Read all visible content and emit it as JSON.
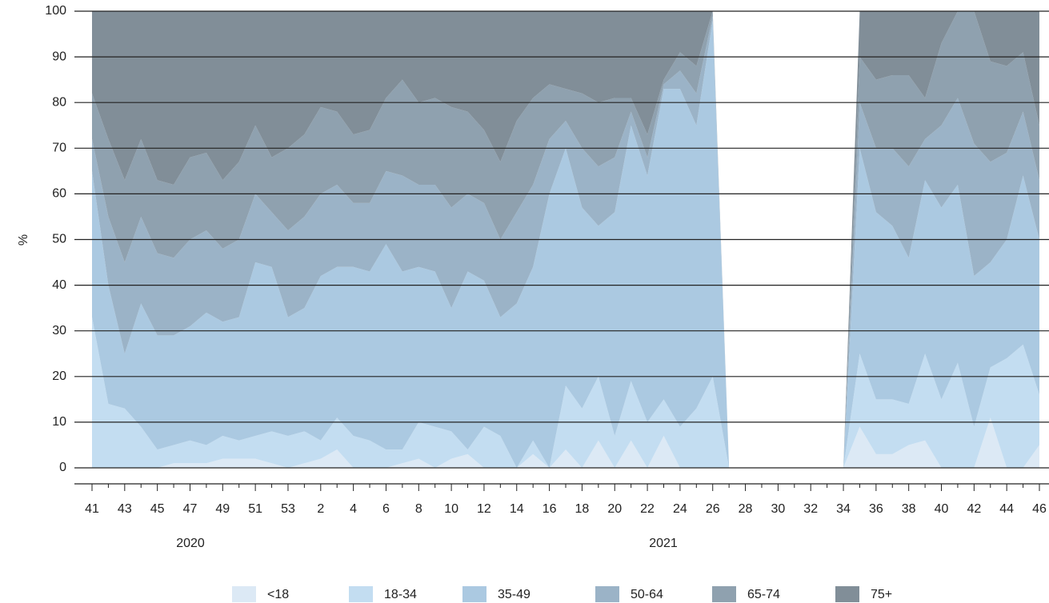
{
  "chart_data": {
    "type": "stacked_area",
    "y_label": "%",
    "categories": [
      "41",
      null,
      "43",
      null,
      "45",
      null,
      "47",
      null,
      "49",
      null,
      "51",
      null,
      "53",
      null,
      "2",
      null,
      "4",
      null,
      "6",
      null,
      "8",
      null,
      "10",
      null,
      "12",
      null,
      "14",
      null,
      "16",
      null,
      "18",
      null,
      "20",
      null,
      "22",
      null,
      "24",
      null,
      "26",
      null,
      "28",
      null,
      "30",
      null,
      "32",
      null,
      "34",
      null,
      "36",
      null,
      "38",
      null,
      "40",
      null,
      "42",
      null,
      "44",
      null,
      "46"
    ],
    "annotations": [
      "2020",
      "2021"
    ],
    "ylim": [
      0,
      100
    ],
    "yticks": [
      0,
      10,
      20,
      30,
      40,
      50,
      60,
      70,
      80,
      90,
      100
    ],
    "grid": true,
    "legend": "bottom",
    "series": [
      {
        "name": "<18",
        "color": "#dce9f5",
        "values": [
          0,
          0,
          0,
          0,
          0,
          1,
          1,
          1,
          2,
          2,
          2,
          1,
          0,
          1,
          2,
          4,
          0,
          0,
          0,
          1,
          2,
          0,
          2,
          3,
          0,
          0,
          0,
          3,
          0,
          4,
          0,
          6,
          0,
          6,
          0,
          7,
          0,
          0,
          0,
          0,
          0,
          0,
          0,
          0,
          0,
          0,
          0,
          9,
          3,
          3,
          5,
          6,
          0,
          0,
          0,
          11,
          0,
          0,
          5
        ]
      },
      {
        "name": "18-34",
        "color": "#c3ddf1",
        "values": [
          33,
          14,
          13,
          9,
          4,
          4,
          5,
          4,
          5,
          4,
          5,
          7,
          7,
          7,
          4,
          7,
          7,
          6,
          4,
          3,
          8,
          9,
          6,
          1,
          9,
          7,
          0,
          3,
          0,
          14,
          13,
          14,
          7,
          13,
          10,
          8,
          9,
          13,
          20,
          0,
          0,
          0,
          0,
          0,
          0,
          0,
          0,
          16,
          12,
          12,
          9,
          19,
          15,
          23,
          9,
          11,
          24,
          27,
          11
        ]
      },
      {
        "name": "35-49",
        "color": "#abc9e1",
        "values": [
          32,
          26,
          12,
          27,
          25,
          24,
          25,
          29,
          25,
          27,
          38,
          36,
          26,
          27,
          36,
          33,
          37,
          37,
          45,
          39,
          34,
          34,
          27,
          39,
          32,
          26,
          36,
          38,
          60,
          52,
          44,
          33,
          49,
          56,
          54,
          68,
          74,
          62,
          78,
          0,
          0,
          0,
          0,
          0,
          0,
          0,
          0,
          45,
          41,
          38,
          32,
          38,
          42,
          39,
          33,
          23,
          26,
          37,
          34
        ]
      },
      {
        "name": "50-64",
        "color": "#9bb3c7",
        "values": [
          7,
          15,
          20,
          19,
          18,
          17,
          19,
          18,
          16,
          17,
          15,
          12,
          19,
          20,
          18,
          18,
          14,
          15,
          16,
          21,
          18,
          19,
          22,
          17,
          17,
          17,
          20,
          18,
          12,
          6,
          13,
          13,
          12,
          3,
          4,
          1,
          4,
          7,
          1,
          0,
          0,
          0,
          0,
          0,
          0,
          0,
          0,
          10,
          14,
          17,
          20,
          9,
          18,
          19,
          29,
          22,
          19,
          14,
          13
        ]
      },
      {
        "name": "65-74",
        "color": "#8fa1af",
        "values": [
          10,
          17,
          18,
          17,
          16,
          16,
          18,
          17,
          15,
          17,
          15,
          12,
          18,
          18,
          19,
          16,
          15,
          16,
          16,
          21,
          18,
          19,
          22,
          18,
          16,
          17,
          20,
          19,
          12,
          7,
          12,
          14,
          13,
          3,
          5,
          1,
          4,
          6,
          1,
          0,
          0,
          0,
          0,
          0,
          0,
          0,
          0,
          10,
          15,
          16,
          20,
          9,
          18,
          19,
          29,
          22,
          19,
          13,
          12
        ]
      },
      {
        "name": "75+",
        "color": "#818e98",
        "values": [
          18,
          28,
          37,
          28,
          37,
          38,
          32,
          31,
          37,
          33,
          25,
          32,
          30,
          27,
          21,
          22,
          27,
          26,
          19,
          15,
          20,
          19,
          21,
          22,
          26,
          33,
          24,
          19,
          16,
          17,
          18,
          20,
          19,
          19,
          27,
          15,
          9,
          12,
          0,
          0,
          0,
          0,
          0,
          0,
          0,
          0,
          0,
          10,
          15,
          14,
          14,
          19,
          7,
          0,
          0,
          11,
          12,
          9,
          25
        ]
      }
    ]
  }
}
